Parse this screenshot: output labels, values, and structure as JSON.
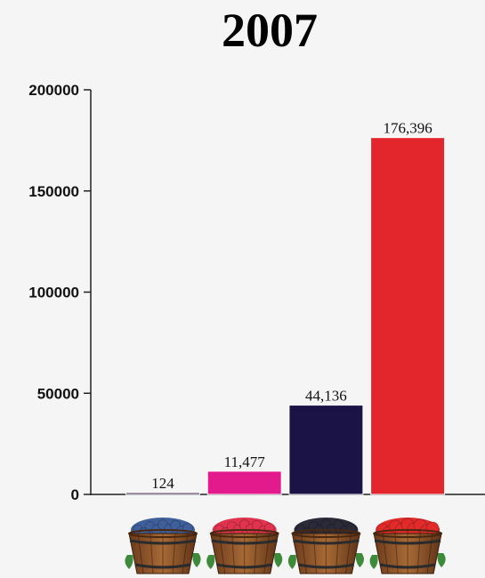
{
  "chart_data": {
    "type": "bar",
    "title": "2007",
    "categories": [
      "blueberries",
      "raspberries",
      "blackberries",
      "strawberries"
    ],
    "values": [
      124,
      11477,
      44136,
      176396
    ],
    "value_labels": [
      "124",
      "11,477",
      "44,136",
      "176,396"
    ],
    "colors": [
      "#3b1c4f",
      "#e21a8c",
      "#1b1346",
      "#e3262b"
    ],
    "ylim": [
      0,
      200000
    ],
    "yticks": [
      0,
      50000,
      100000,
      150000,
      200000
    ],
    "ytick_labels": [
      "0",
      "50000",
      "100000",
      "150000",
      "200000"
    ],
    "grid": false,
    "legend": "none",
    "category_icons": [
      "blueberry-basket-icon",
      "raspberry-basket-icon",
      "blackberry-basket-icon",
      "strawberry-basket-icon"
    ]
  }
}
